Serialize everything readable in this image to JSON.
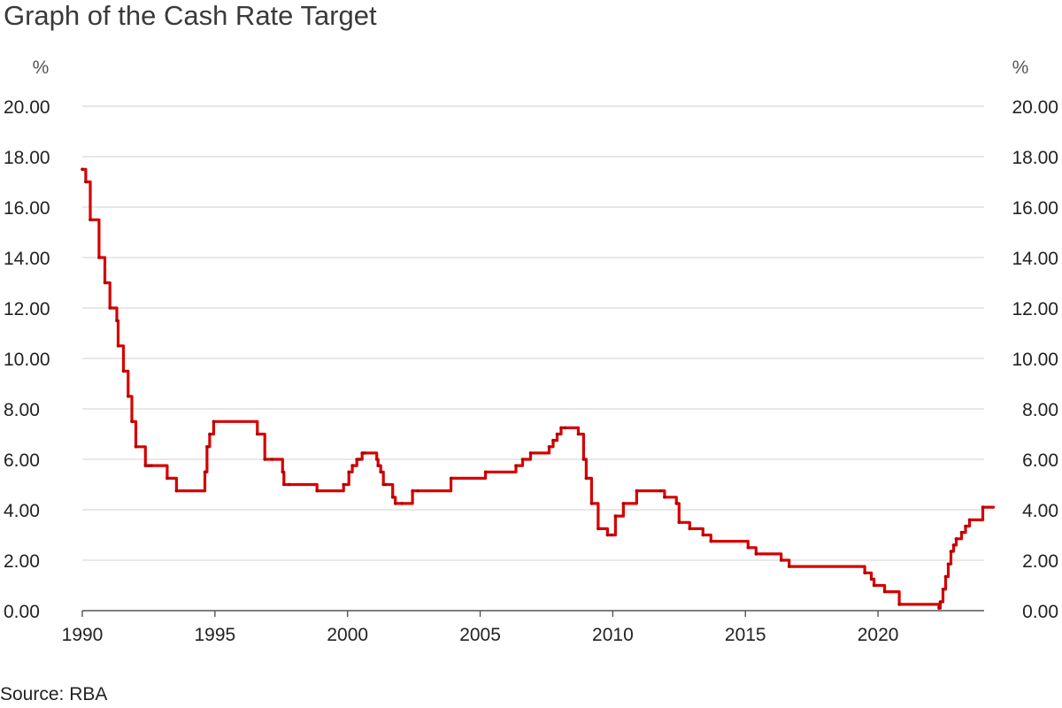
{
  "chart_data": {
    "type": "line",
    "title": "Graph of the Cash Rate Target",
    "source": "Source: RBA",
    "y_unit_left": "%",
    "y_unit_right": "%",
    "ylim": [
      0,
      20
    ],
    "y_ticks": [
      0,
      2,
      4,
      6,
      8,
      10,
      12,
      14,
      16,
      18,
      20
    ],
    "y_tick_labels": [
      "0.00",
      "2.00",
      "4.00",
      "6.00",
      "8.00",
      "10.00",
      "12.00",
      "14.00",
      "16.00",
      "18.00",
      "20.00"
    ],
    "xlim": [
      1990,
      2024
    ],
    "x_ticks": [
      1990,
      1995,
      2000,
      2005,
      2010,
      2015,
      2020
    ],
    "x_tick_labels": [
      "1990",
      "1995",
      "2000",
      "2005",
      "2010",
      "2015",
      "2020"
    ],
    "grid": "horizontal",
    "line_color": "#d60000",
    "series": [
      {
        "x": [
          1990.0,
          1990.13,
          1990.3,
          1990.63,
          1990.85,
          1991.04,
          1991.3,
          1991.35,
          1991.55,
          1991.73,
          1991.87,
          1992.02,
          1992.38,
          1992.5,
          1992.6,
          1993.2,
          1993.55,
          1994.62,
          1994.7,
          1994.8,
          1994.95,
          1996.6,
          1996.88,
          1997.15,
          1997.55,
          1997.6,
          1997.8,
          1998.85,
          1999.85,
          2000.05,
          2000.18,
          2000.35,
          2000.45,
          2000.55,
          2000.65,
          2001.1,
          2001.15,
          2001.25,
          2001.35,
          2001.45,
          2001.7,
          2001.8,
          2002.05,
          2002.45,
          2002.65,
          2003.9,
          2005.2,
          2006.35,
          2006.6,
          2006.9,
          2007.6,
          2007.75,
          2007.9,
          2008.05,
          2008.2,
          2008.7,
          2008.9,
          2009.0,
          2009.2,
          2009.45,
          2009.8,
          2009.95,
          2010.1,
          2010.4,
          2010.9,
          2011.8,
          2011.95,
          2012.4,
          2012.5,
          2012.9,
          2013.4,
          2013.7,
          2015.1,
          2015.4,
          2016.35,
          2016.65,
          2019.5,
          2019.75,
          2019.85,
          2020.25,
          2020.8,
          2022.3,
          2022.35,
          2022.45,
          2022.55,
          2022.65,
          2022.75,
          2022.85,
          2022.95,
          2023.15,
          2023.3,
          2023.45,
          2023.95
        ],
        "values": [
          17.5,
          17.0,
          15.5,
          14.0,
          13.0,
          12.0,
          11.5,
          10.5,
          9.5,
          8.5,
          7.5,
          6.5,
          5.75,
          5.75,
          5.75,
          5.25,
          4.75,
          5.5,
          6.5,
          7.0,
          7.5,
          7.0,
          6.0,
          6.0,
          5.5,
          5.0,
          5.0,
          4.75,
          5.0,
          5.5,
          5.75,
          6.0,
          6.0,
          6.25,
          6.25,
          6.0,
          5.75,
          5.5,
          5.0,
          5.0,
          4.5,
          4.25,
          4.25,
          4.75,
          4.75,
          5.25,
          5.5,
          5.75,
          6.0,
          6.25,
          6.5,
          6.75,
          7.0,
          7.25,
          7.25,
          7.0,
          6.0,
          5.25,
          4.25,
          3.25,
          3.0,
          3.0,
          3.75,
          4.25,
          4.75,
          4.75,
          4.5,
          4.25,
          3.5,
          3.25,
          3.0,
          2.75,
          2.5,
          2.25,
          2.0,
          1.75,
          1.5,
          1.25,
          1.0,
          0.75,
          0.25,
          0.1,
          0.35,
          0.85,
          1.35,
          1.85,
          2.35,
          2.6,
          2.85,
          3.1,
          3.35,
          3.6,
          4.1
        ]
      }
    ]
  }
}
